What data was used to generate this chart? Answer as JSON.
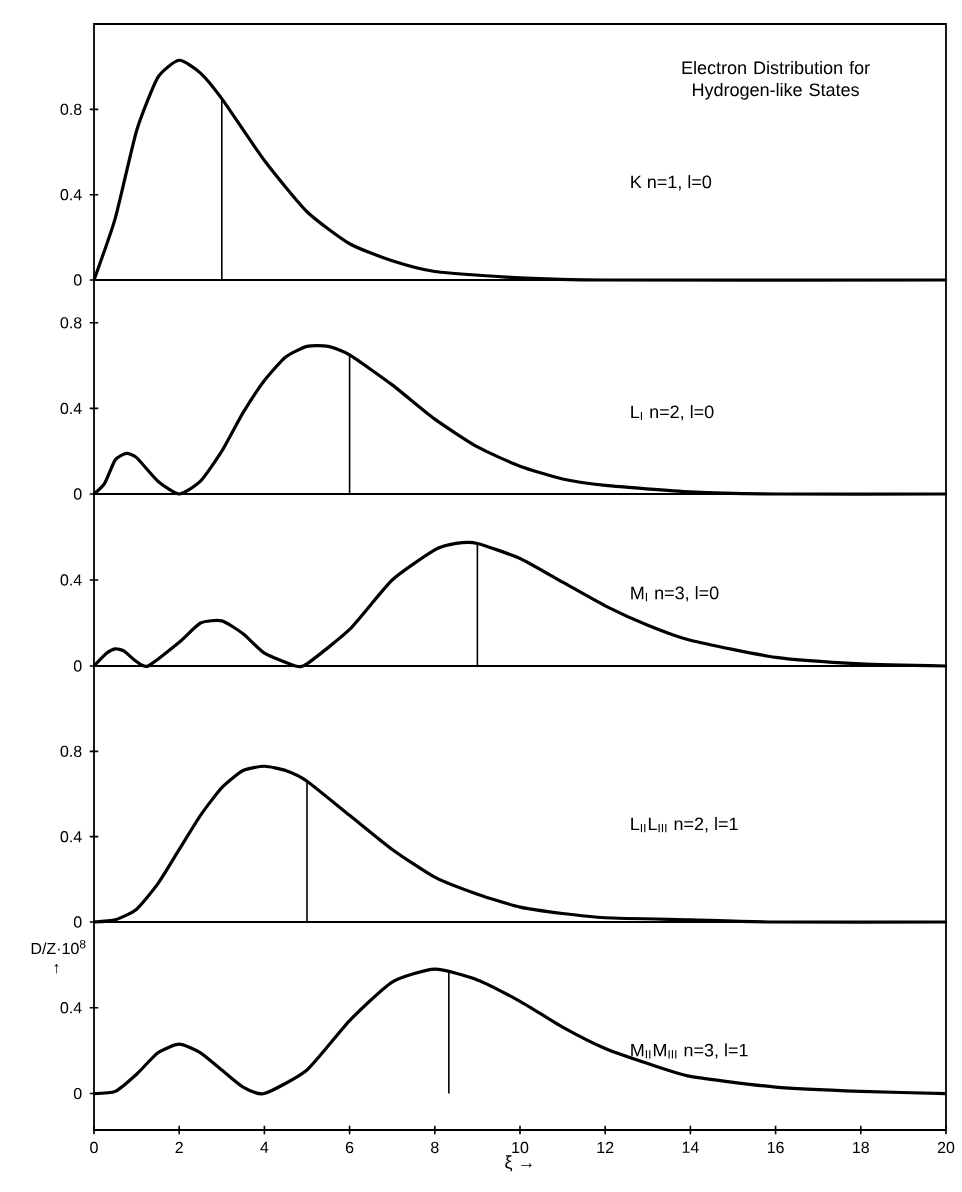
{
  "chart_data": [
    {
      "type": "line",
      "title": "Electron Distribution for Hydrogen-like States",
      "annotations": [
        "K   n=1, l=0"
      ],
      "xlim": [
        0,
        20
      ],
      "ylim": [
        0,
        1.2
      ],
      "yticks": [
        0,
        0.4,
        0.8
      ],
      "tick_labels": "y",
      "series": [
        {
          "color": "#000000",
          "x": [
            0,
            0.5,
            1,
            1.5,
            2,
            2.5,
            3,
            4,
            5,
            6,
            7,
            8,
            10,
            12,
            20
          ],
          "values": [
            0,
            0.29,
            0.7,
            0.95,
            1.03,
            0.97,
            0.85,
            0.56,
            0.32,
            0.17,
            0.09,
            0.04,
            0.01,
            0,
            0
          ]
        },
        {
          "color": "#000000",
          "x": [
            3,
            3
          ],
          "values": [
            0,
            0.85
          ]
        }
      ]
    },
    {
      "type": "line",
      "annotations": [
        "L$_{I}$   n=2, l=0"
      ],
      "xlim": [
        0,
        20
      ],
      "ylim": [
        0,
        1.0
      ],
      "yticks": [
        0,
        0.4,
        0.8
      ],
      "tick_labels": "y",
      "series": [
        {
          "color": "#000000",
          "x": [
            0,
            0.25,
            0.5,
            0.76,
            1,
            1.5,
            2,
            2.5,
            3,
            3.5,
            4,
            4.5,
            5,
            5.5,
            6,
            7,
            8,
            9,
            10,
            11,
            12,
            14,
            16,
            20
          ],
          "values": [
            0,
            0.05,
            0.16,
            0.19,
            0.17,
            0.06,
            0,
            0.06,
            0.2,
            0.38,
            0.53,
            0.64,
            0.69,
            0.69,
            0.65,
            0.51,
            0.35,
            0.22,
            0.13,
            0.07,
            0.04,
            0.01,
            0,
            0
          ]
        },
        {
          "color": "#000000",
          "x": [
            6,
            6
          ],
          "values": [
            0,
            0.65
          ]
        }
      ]
    },
    {
      "type": "line",
      "annotations": [
        "M$_{I}$   n=3, l=0"
      ],
      "xlim": [
        0,
        20
      ],
      "ylim": [
        0,
        0.8
      ],
      "yticks": [
        0,
        0.4
      ],
      "tick_labels": "y",
      "series": [
        {
          "color": "#000000",
          "x": [
            0,
            0.3,
            0.5,
            0.7,
            1,
            1.27,
            2,
            2.5,
            3,
            3.5,
            4,
            4.73,
            5,
            6,
            7,
            8,
            8.5,
            9,
            10,
            11,
            12,
            13,
            14,
            16,
            18,
            20
          ],
          "values": [
            0,
            0.06,
            0.08,
            0.07,
            0.02,
            0,
            0.11,
            0.2,
            0.21,
            0.15,
            0.06,
            0,
            0.01,
            0.17,
            0.4,
            0.54,
            0.57,
            0.57,
            0.5,
            0.39,
            0.28,
            0.19,
            0.12,
            0.04,
            0.01,
            0
          ]
        },
        {
          "color": "#000000",
          "x": [
            9,
            9
          ],
          "values": [
            0,
            0.57
          ]
        }
      ]
    },
    {
      "type": "line",
      "annotations": [
        "L$_{II}$L$_{III}$   n=2, l=1"
      ],
      "xlim": [
        0,
        20
      ],
      "ylim": [
        0,
        1.2
      ],
      "yticks": [
        0,
        0.4,
        0.8
      ],
      "tick_labels": "y",
      "series": [
        {
          "color": "#000000",
          "x": [
            0,
            0.5,
            1,
            1.5,
            2,
            2.5,
            3,
            3.5,
            4,
            4.5,
            5,
            6,
            7,
            8,
            9,
            10,
            11,
            12,
            14,
            16,
            20
          ],
          "values": [
            0,
            0.01,
            0.06,
            0.18,
            0.34,
            0.5,
            0.63,
            0.71,
            0.73,
            0.71,
            0.66,
            0.5,
            0.34,
            0.21,
            0.13,
            0.07,
            0.04,
            0.02,
            0.01,
            0,
            0
          ]
        },
        {
          "color": "#000000",
          "x": [
            5,
            5
          ],
          "values": [
            0,
            0.66
          ]
        }
      ]
    },
    {
      "type": "line",
      "annotations": [
        "M$_{II}$M$_{III}$   n=3, l=1"
      ],
      "xlabel": "ξ →",
      "ylabel": "D/Z·10$^{8}$ ↑",
      "xlim": [
        0,
        20
      ],
      "ylim": [
        -0.17,
        0.8
      ],
      "xticks": [
        0,
        2,
        4,
        6,
        8,
        10,
        12,
        14,
        16,
        18,
        20
      ],
      "yticks": [
        0,
        0.4
      ],
      "series": [
        {
          "color": "#000000",
          "x": [
            0,
            0.5,
            1,
            1.5,
            2,
            2.5,
            3,
            3.5,
            4,
            5,
            6,
            7,
            8,
            9,
            10,
            11,
            12,
            13,
            14,
            16,
            18,
            20
          ],
          "values": [
            0,
            0.01,
            0.09,
            0.19,
            0.23,
            0.19,
            0.11,
            0.03,
            0,
            0.11,
            0.34,
            0.52,
            0.58,
            0.53,
            0.43,
            0.31,
            0.21,
            0.14,
            0.08,
            0.03,
            0.01,
            0
          ]
        },
        {
          "color": "#000000",
          "x": [
            8.33,
            8.33
          ],
          "values": [
            0,
            0.57
          ]
        }
      ]
    }
  ]
}
